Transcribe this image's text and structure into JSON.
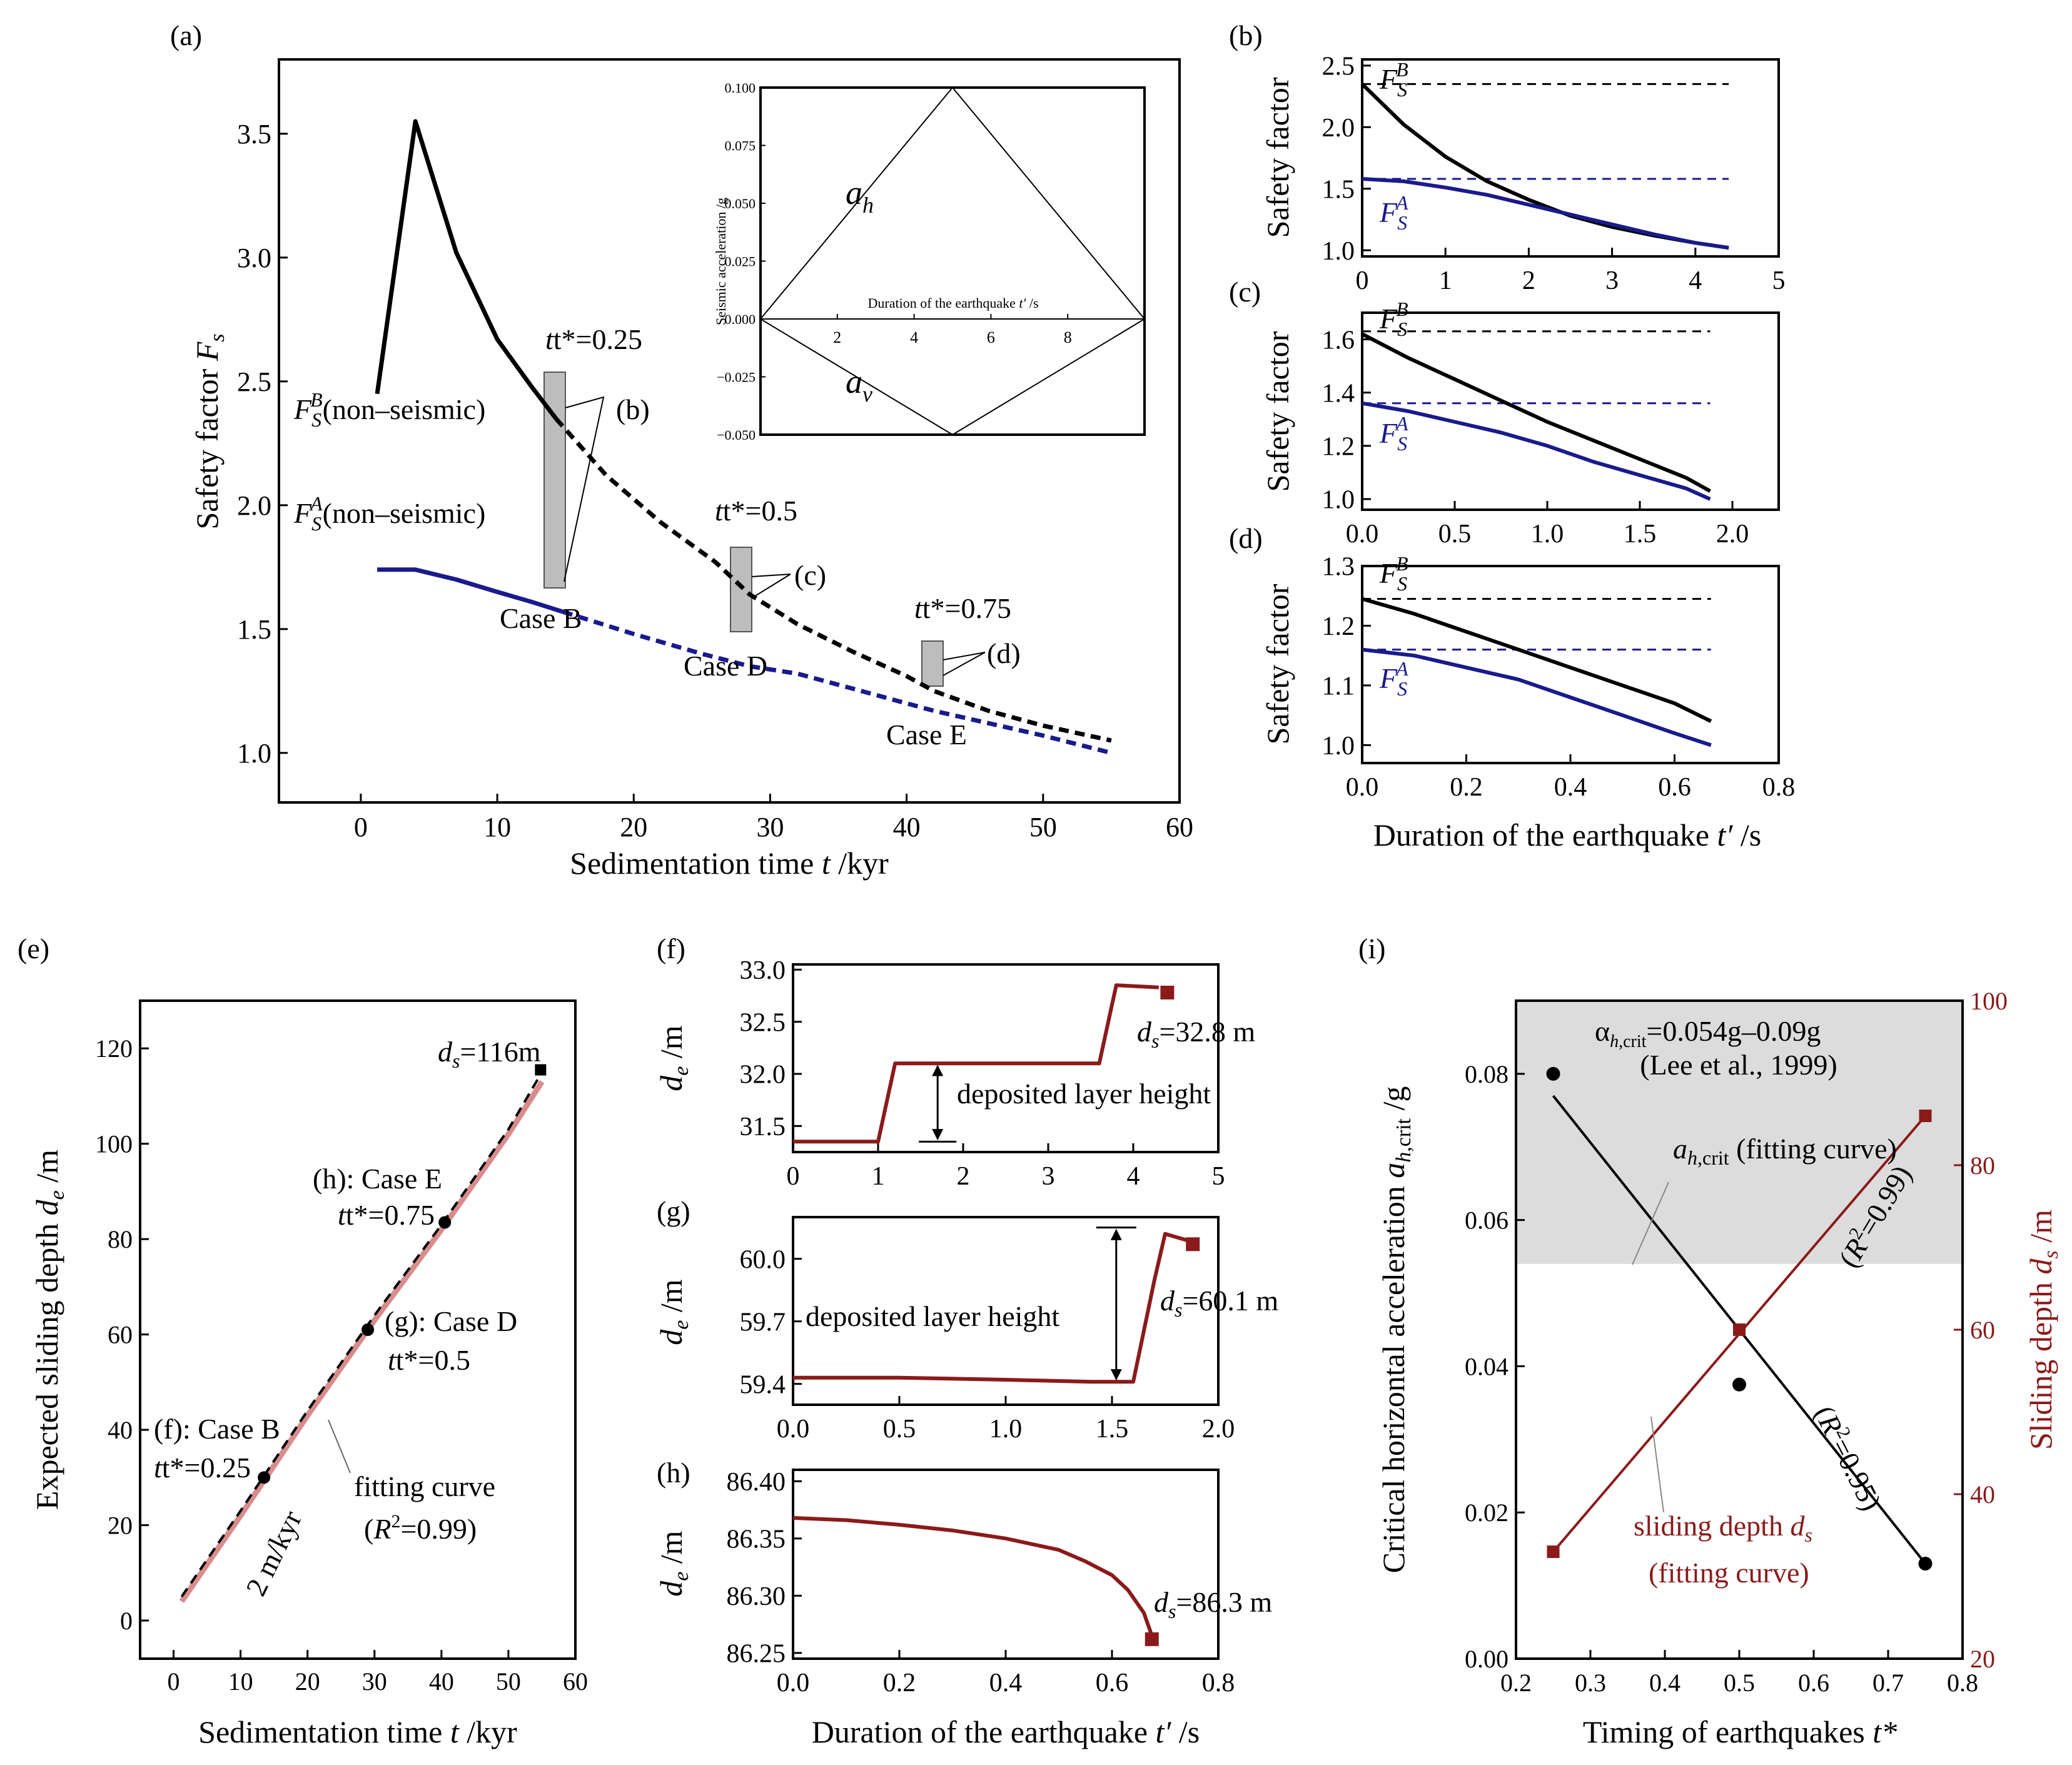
{
  "colors": {
    "black": "#000000",
    "blue": "#1a1a8c",
    "red": "#8b1a1a",
    "pink": "#d98c8c",
    "gray": "#bdbdbd",
    "shade": "#dcdcdc"
  },
  "chart_data": [
    {
      "id": "a",
      "type": "line",
      "panel_label": "(a)",
      "xlabel": "Sedimentation time t /kyr",
      "ylabel": "Safety factor Fs",
      "xlim": [
        -6,
        60
      ],
      "ylim": [
        0.8,
        3.8
      ],
      "xticks": [
        0,
        10,
        20,
        30,
        40,
        50,
        60
      ],
      "yticks": [
        1.0,
        1.5,
        2.0,
        2.5,
        3.0,
        3.5
      ],
      "xticklabels": [
        "0",
        "10",
        "20",
        "30",
        "40",
        "50",
        "60"
      ],
      "yticklabels": [
        "1.0",
        "1.5",
        "2.0",
        "2.5",
        "3.0",
        "3.5"
      ],
      "series": [
        {
          "name": "F_S^B solid",
          "color": "black",
          "dash": false,
          "x": [
            1.2,
            4,
            7,
            10,
            12.5,
            14.3
          ],
          "y": [
            2.45,
            3.55,
            3.02,
            2.67,
            2.48,
            2.35
          ]
        },
        {
          "name": "F_S^B dashed",
          "color": "black",
          "dash": true,
          "x": [
            14.3,
            18,
            22,
            26,
            28.5,
            32,
            36,
            40,
            42,
            46,
            50,
            55
          ],
          "y": [
            2.35,
            2.12,
            1.93,
            1.77,
            1.64,
            1.52,
            1.41,
            1.31,
            1.25,
            1.17,
            1.11,
            1.05
          ]
        },
        {
          "name": "F_S^A solid",
          "color": "blue",
          "dash": false,
          "x": [
            1.2,
            4,
            7,
            10,
            12.5,
            14.8
          ],
          "y": [
            1.74,
            1.74,
            1.7,
            1.65,
            1.61,
            1.57
          ]
        },
        {
          "name": "F_S^A dashed",
          "color": "blue",
          "dash": true,
          "x": [
            14.8,
            20,
            25,
            28.5,
            32,
            36,
            42,
            46,
            50,
            55
          ],
          "y": [
            1.57,
            1.48,
            1.4,
            1.35,
            1.32,
            1.26,
            1.17,
            1.12,
            1.07,
            1.0
          ]
        }
      ],
      "annotations": {
        "t025": "t*=0.25",
        "t05": "t*=0.5",
        "t075": "t*=0.75",
        "caseB": "Case B",
        "caseD": "Case D",
        "caseE": "Case E",
        "b": "(b)",
        "c": "(c)",
        "d": "(d)",
        "fsb": "(non–seismic)",
        "fsa": "(non–seismic)"
      },
      "inset": {
        "ylabel": "Seismic acceleration /g",
        "xlabel": "Duration of the earthquake t′ /s",
        "xlim": [
          0,
          10
        ],
        "ylim": [
          -0.05,
          0.1
        ],
        "yticklabels": [
          "0.100",
          "0.075",
          "0.050",
          "0.025",
          "0.000",
          "−0.025",
          "−0.050"
        ],
        "yticks": [
          0.1,
          0.075,
          0.05,
          0.025,
          0.0,
          -0.025,
          -0.05
        ],
        "xticks": [
          2,
          4,
          6,
          8
        ],
        "xticklabels": [
          "2",
          "4",
          "6",
          "8"
        ],
        "ah": {
          "x": [
            0,
            5,
            10
          ],
          "y": [
            0,
            0.1,
            0
          ]
        },
        "av": {
          "x": [
            0,
            5,
            10
          ],
          "y": [
            0,
            -0.05,
            0
          ]
        },
        "ah_label": "a",
        "ah_sub": "h",
        "av_label": "a",
        "av_sub": "v"
      }
    },
    {
      "id": "b",
      "type": "line",
      "panel_label": "(b)",
      "ylabel": "Safety factor",
      "xlim": [
        0,
        5
      ],
      "ylim": [
        0.95,
        2.55
      ],
      "xticks": [
        0,
        1,
        2,
        3,
        4,
        5
      ],
      "xticklabels": [
        "0",
        "1",
        "2",
        "3",
        "4",
        "5"
      ],
      "yticks": [
        1.0,
        1.5,
        2.0,
        2.5
      ],
      "yticklabels": [
        "1.0",
        "1.5",
        "2.0",
        "2.5"
      ],
      "series": [
        {
          "name": "F_S^B",
          "color": "black",
          "x": [
            0,
            0.5,
            1,
            1.5,
            2,
            2.5,
            3,
            3.5,
            4,
            4.4
          ],
          "y": [
            2.35,
            2.02,
            1.76,
            1.56,
            1.41,
            1.28,
            1.19,
            1.12,
            1.06,
            1.02
          ]
        },
        {
          "name": "F_S^A",
          "color": "blue",
          "x": [
            0,
            0.5,
            1,
            1.5,
            2,
            2.5,
            3,
            3.5,
            4,
            4.4
          ],
          "y": [
            1.58,
            1.56,
            1.51,
            1.45,
            1.37,
            1.29,
            1.21,
            1.13,
            1.06,
            1.02
          ]
        }
      ],
      "hlines": [
        {
          "y": 2.35,
          "color": "black"
        },
        {
          "y": 1.58,
          "color": "blue"
        }
      ]
    },
    {
      "id": "c",
      "type": "line",
      "panel_label": "(c)",
      "ylabel": "Safety factor",
      "xlim": [
        0,
        2.25
      ],
      "ylim": [
        0.96,
        1.7
      ],
      "xticks": [
        0,
        0.5,
        1.0,
        1.5,
        2.0
      ],
      "xticklabels": [
        "0.0",
        "0.5",
        "1.0",
        "1.5",
        "2.0"
      ],
      "yticks": [
        1.0,
        1.2,
        1.4,
        1.6
      ],
      "yticklabels": [
        "1.0",
        "1.2",
        "1.4",
        "1.6"
      ],
      "series": [
        {
          "name": "F_S^B",
          "color": "black",
          "x": [
            0,
            0.25,
            0.5,
            0.75,
            1.0,
            1.25,
            1.5,
            1.75,
            1.88
          ],
          "y": [
            1.62,
            1.53,
            1.45,
            1.37,
            1.29,
            1.22,
            1.15,
            1.08,
            1.03
          ]
        },
        {
          "name": "F_S^A",
          "color": "blue",
          "x": [
            0,
            0.25,
            0.5,
            0.75,
            1.0,
            1.25,
            1.5,
            1.75,
            1.88
          ],
          "y": [
            1.36,
            1.33,
            1.29,
            1.25,
            1.2,
            1.14,
            1.09,
            1.04,
            1.0
          ]
        }
      ],
      "hlines": [
        {
          "y": 1.63,
          "color": "black"
        },
        {
          "y": 1.36,
          "color": "blue"
        }
      ]
    },
    {
      "id": "d",
      "type": "line",
      "panel_label": "(d)",
      "ylabel": "Safety factor",
      "xlabel": "Duration of the earthquake t′ /s",
      "xlim": [
        0,
        0.8
      ],
      "ylim": [
        0.97,
        1.3
      ],
      "xticks": [
        0,
        0.2,
        0.4,
        0.6,
        0.8
      ],
      "xticklabels": [
        "0.0",
        "0.2",
        "0.4",
        "0.6",
        "0.8"
      ],
      "yticks": [
        1.0,
        1.1,
        1.2,
        1.3
      ],
      "yticklabels": [
        "1.0",
        "1.1",
        "1.2",
        "1.3"
      ],
      "series": [
        {
          "name": "F_S^B",
          "color": "black",
          "x": [
            0,
            0.1,
            0.2,
            0.3,
            0.4,
            0.5,
            0.6,
            0.67
          ],
          "y": [
            1.245,
            1.22,
            1.19,
            1.16,
            1.13,
            1.1,
            1.07,
            1.04
          ]
        },
        {
          "name": "F_S^A",
          "color": "blue",
          "x": [
            0,
            0.1,
            0.2,
            0.3,
            0.4,
            0.5,
            0.6,
            0.67
          ],
          "y": [
            1.16,
            1.15,
            1.13,
            1.11,
            1.08,
            1.05,
            1.02,
            1.0
          ]
        }
      ],
      "hlines": [
        {
          "y": 1.245,
          "color": "black"
        },
        {
          "y": 1.16,
          "color": "blue"
        }
      ]
    },
    {
      "id": "e",
      "type": "line",
      "panel_label": "(e)",
      "xlabel": "Sedimentation time t /kyr",
      "ylabel": "Expected sliding depth de /m",
      "xlim": [
        -5,
        60
      ],
      "ylim": [
        -8,
        130
      ],
      "xticks": [
        0,
        10,
        20,
        30,
        40,
        50,
        60
      ],
      "xticklabels": [
        "0",
        "10",
        "20",
        "30",
        "40",
        "50",
        "60"
      ],
      "yticks": [
        0,
        20,
        40,
        60,
        80,
        100,
        120
      ],
      "yticklabels": [
        "0",
        "20",
        "40",
        "60",
        "80",
        "100",
        "120"
      ],
      "series": [
        {
          "name": "fitting curve",
          "color": "pink",
          "x": [
            1.2,
            10,
            20,
            30,
            40,
            50,
            55
          ],
          "y": [
            4,
            22,
            43,
            63,
            82,
            102,
            113
          ]
        },
        {
          "name": "expected sliding depth",
          "color": "black",
          "dash": true,
          "x": [
            1.2,
            10,
            20,
            30,
            40,
            50,
            55
          ],
          "y": [
            5,
            23,
            44,
            64,
            83,
            103,
            115
          ]
        }
      ],
      "points": [
        {
          "x": 13.5,
          "y": 30
        },
        {
          "x": 29,
          "y": 61
        },
        {
          "x": 40.5,
          "y": 83.5
        }
      ],
      "endpoint": {
        "x": 54.8,
        "y": 115.5
      },
      "annotations": {
        "ds": "=116m",
        "h1": "(h): Case E",
        "h2": "t*=0.75",
        "g1": "(g): Case D",
        "g2": "t*=0.5",
        "f1": "(f): Case B",
        "f2": "t*=0.25",
        "fit": "fitting curve",
        "r2": "=0.99)",
        "slope": "2 m/kyr"
      }
    },
    {
      "id": "f",
      "type": "line",
      "panel_label": "(f)",
      "ylabel": "de /m",
      "xlim": [
        0,
        5
      ],
      "ylim": [
        31.25,
        33.05
      ],
      "xticks": [
        0,
        1,
        2,
        3,
        4,
        5
      ],
      "xticklabels": [
        "0",
        "1",
        "2",
        "3",
        "4",
        "5"
      ],
      "yticks": [
        31.5,
        32.0,
        32.5,
        33.0
      ],
      "yticklabels": [
        "31.5",
        "32.0",
        "32.5",
        "33.0"
      ],
      "series": [
        {
          "name": "de",
          "color": "red",
          "x": [
            0,
            1.0,
            1.2,
            2.0,
            3.0,
            3.6,
            3.8,
            4.3
          ],
          "y": [
            31.35,
            31.35,
            32.1,
            32.1,
            32.1,
            32.1,
            32.85,
            32.83
          ]
        }
      ],
      "endpoint": {
        "x": 4.4,
        "y": 32.78
      },
      "annotations": {
        "ds": "=32.8 m",
        "layer": "deposited layer height"
      }
    },
    {
      "id": "g",
      "type": "line",
      "panel_label": "(g)",
      "ylabel": "de /m",
      "xlim": [
        0,
        2.0
      ],
      "ylim": [
        59.3,
        60.2
      ],
      "xticks": [
        0,
        0.5,
        1.0,
        1.5,
        2.0
      ],
      "xticklabels": [
        "0.0",
        "0.5",
        "1.0",
        "1.5",
        "2.0"
      ],
      "yticks": [
        59.4,
        59.7,
        60.0
      ],
      "yticklabels": [
        "59.4",
        "59.7",
        "60.0"
      ],
      "series": [
        {
          "name": "de",
          "color": "red",
          "x": [
            0,
            0.5,
            1.0,
            1.4,
            1.6,
            1.7,
            1.75,
            1.85
          ],
          "y": [
            59.43,
            59.43,
            59.42,
            59.41,
            59.41,
            59.9,
            60.12,
            60.09
          ]
        }
      ],
      "endpoint": {
        "x": 1.88,
        "y": 60.07
      },
      "annotations": {
        "ds": "=60.1 m",
        "layer": "deposited layer height"
      }
    },
    {
      "id": "h",
      "type": "line",
      "panel_label": "(h)",
      "ylabel": "de /m",
      "xlabel": "Duration of the earthquake t′ /s",
      "xlim": [
        0,
        0.8
      ],
      "ylim": [
        86.245,
        86.41
      ],
      "xticks": [
        0,
        0.2,
        0.4,
        0.6,
        0.8
      ],
      "xticklabels": [
        "0.0",
        "0.2",
        "0.4",
        "0.6",
        "0.8"
      ],
      "yticks": [
        86.25,
        86.3,
        86.35,
        86.4
      ],
      "yticklabels": [
        "86.25",
        "86.30",
        "86.35",
        "86.40"
      ],
      "series": [
        {
          "name": "de",
          "color": "red",
          "x": [
            0,
            0.1,
            0.2,
            0.3,
            0.4,
            0.5,
            0.55,
            0.6,
            0.63,
            0.66,
            0.675
          ],
          "y": [
            86.368,
            86.366,
            86.362,
            86.357,
            86.35,
            86.34,
            86.33,
            86.318,
            86.305,
            86.285,
            86.265
          ]
        }
      ],
      "endpoint": {
        "x": 0.675,
        "y": 86.262
      },
      "annotations": {
        "ds": "=86.3 m"
      }
    },
    {
      "id": "i",
      "type": "scatter",
      "panel_label": "(i)",
      "xlabel": "Timing of earthquakes t*",
      "ylabel_left": "Critical horizontal acceleration a_h,crit /g",
      "ylabel_right": "Sliding depth ds /m",
      "xlim": [
        0.2,
        0.8
      ],
      "ylim_left": [
        0,
        0.09
      ],
      "ylim_right": [
        20,
        100
      ],
      "xticks": [
        0.2,
        0.3,
        0.4,
        0.5,
        0.6,
        0.7,
        0.8
      ],
      "xticklabels": [
        "0.2",
        "0.3",
        "0.4",
        "0.5",
        "0.6",
        "0.7",
        "0.8"
      ],
      "yticks_left": [
        0,
        0.02,
        0.04,
        0.06,
        0.08
      ],
      "yticklabels_left": [
        "0.00",
        "0.02",
        "0.04",
        "0.06",
        "0.08"
      ],
      "yticks_right": [
        20,
        40,
        60,
        80,
        100
      ],
      "yticklabels_right": [
        "20",
        "40",
        "60",
        "80",
        "100"
      ],
      "shaded_band_left": [
        0.054,
        0.09
      ],
      "a_crit_points": {
        "x": [
          0.25,
          0.5,
          0.75
        ],
        "y": [
          0.08,
          0.0375,
          0.013
        ]
      },
      "a_crit_fit": {
        "x": [
          0.25,
          0.75
        ],
        "y": [
          0.077,
          0.013
        ]
      },
      "ds_points": {
        "x": [
          0.25,
          0.5,
          0.75
        ],
        "y": [
          33,
          60,
          86
        ]
      },
      "ds_fit": {
        "x": [
          0.25,
          0.75
        ],
        "y": [
          33,
          86
        ]
      },
      "annotations": {
        "alpha": "=0.054g–0.09g",
        "lee": "(Lee et al., 1999)",
        "acrit_fit": "(fitting curve)",
        "r2a": "=0.99)",
        "r2b": "=0.95)",
        "sd1": "sliding depth",
        "sd2": "(fitting curve)"
      }
    }
  ]
}
